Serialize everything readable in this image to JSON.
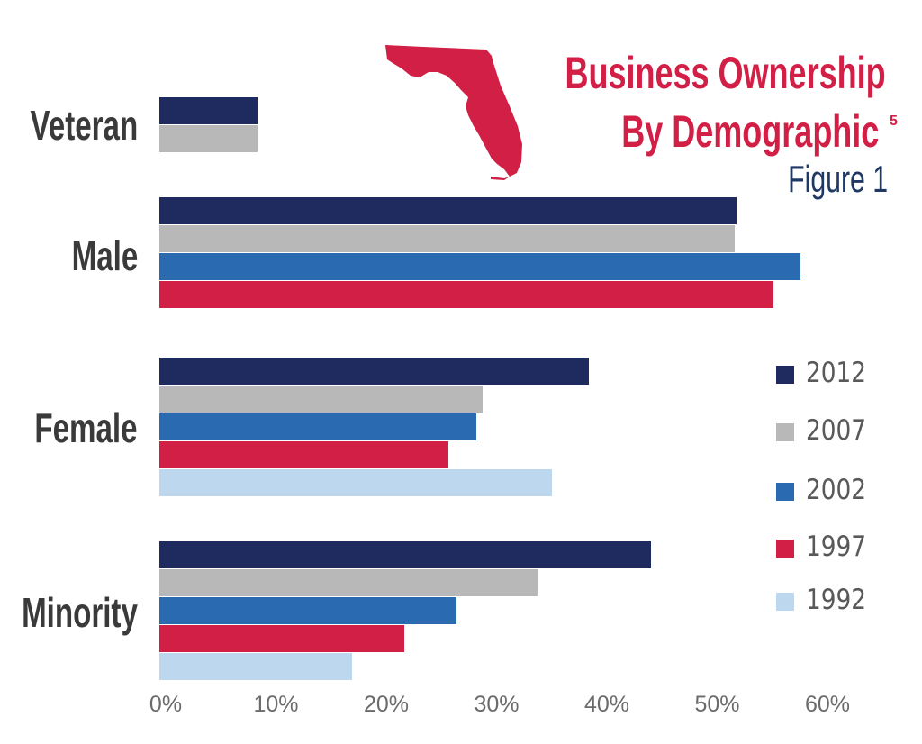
{
  "title_line1": "Business Ownership",
  "title_line2": "By Demographic",
  "title_superscript": "5",
  "figure_label": "Figure 1",
  "chart_data": {
    "type": "bar",
    "orientation": "horizontal",
    "categories": [
      "Veteran",
      "Male",
      "Female",
      "Minority"
    ],
    "series": [
      {
        "name": "2012",
        "color": "#1f2a5e",
        "values": [
          8.9,
          52.3,
          38.9,
          44.6
        ]
      },
      {
        "name": "2007",
        "color": "#b8b8b8",
        "values": [
          8.9,
          52.2,
          29.3,
          34.3
        ]
      },
      {
        "name": "2002",
        "color": "#2a6ab0",
        "values": [
          null,
          58.1,
          28.7,
          26.9
        ]
      },
      {
        "name": "1997",
        "color": "#d21f46",
        "values": [
          null,
          55.7,
          26.2,
          22.2
        ]
      },
      {
        "name": "1992",
        "color": "#bdd7ee",
        "values": [
          null,
          null,
          35.6,
          17.5
        ]
      }
    ],
    "xlim": [
      0,
      60
    ],
    "xticks": [
      "0%",
      "10%",
      "20%",
      "30%",
      "40%",
      "50%",
      "60%"
    ],
    "grid": false,
    "legend_position": "right"
  }
}
